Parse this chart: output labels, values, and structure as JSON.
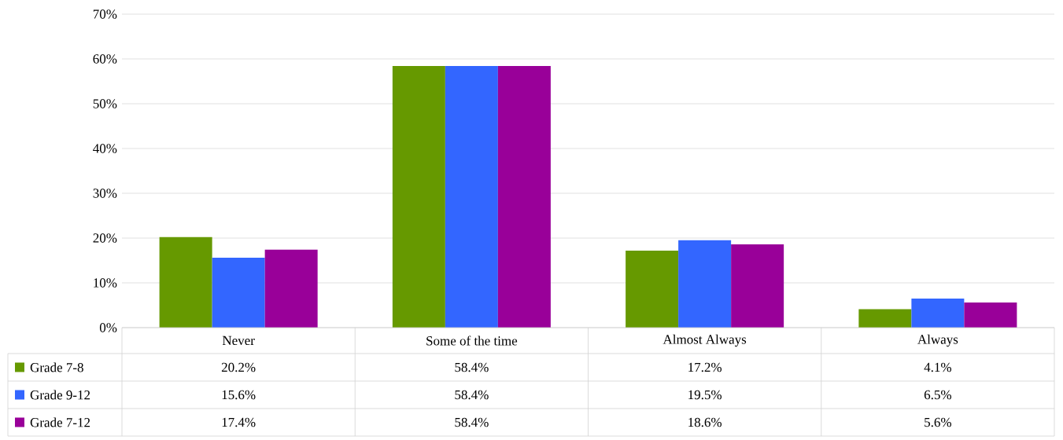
{
  "chart_data": {
    "type": "bar",
    "categories": [
      "Never",
      "Some of the time",
      "Almost Always",
      "Always"
    ],
    "series": [
      {
        "name": "Grade  7-8",
        "color": "#669900",
        "values": [
          20.2,
          58.4,
          17.2,
          4.1
        ],
        "value_labels": [
          "20.2%",
          "58.4%",
          "17.2%",
          "4.1%"
        ]
      },
      {
        "name": "Grade  9-12",
        "color": "#3366ff",
        "values": [
          15.6,
          58.4,
          19.5,
          6.5
        ],
        "value_labels": [
          "15.6%",
          "58.4%",
          "19.5%",
          "6.5%"
        ]
      },
      {
        "name": "Grade  7-12",
        "color": "#990099",
        "values": [
          17.4,
          58.4,
          18.6,
          5.6
        ],
        "value_labels": [
          "17.4%",
          "58.4%",
          "18.6%",
          "5.6%"
        ]
      }
    ],
    "ylim": [
      0,
      70
    ],
    "yticks": [
      {
        "value": 0,
        "label": "0%"
      },
      {
        "value": 10,
        "label": "10%"
      },
      {
        "value": 20,
        "label": "20%"
      },
      {
        "value": 30,
        "label": "30%"
      },
      {
        "value": 40,
        "label": "40%"
      },
      {
        "value": 50,
        "label": "50%"
      },
      {
        "value": 60,
        "label": "60%"
      },
      {
        "value": 70,
        "label": "70%"
      }
    ],
    "grid": "y",
    "legend": "bottom"
  }
}
